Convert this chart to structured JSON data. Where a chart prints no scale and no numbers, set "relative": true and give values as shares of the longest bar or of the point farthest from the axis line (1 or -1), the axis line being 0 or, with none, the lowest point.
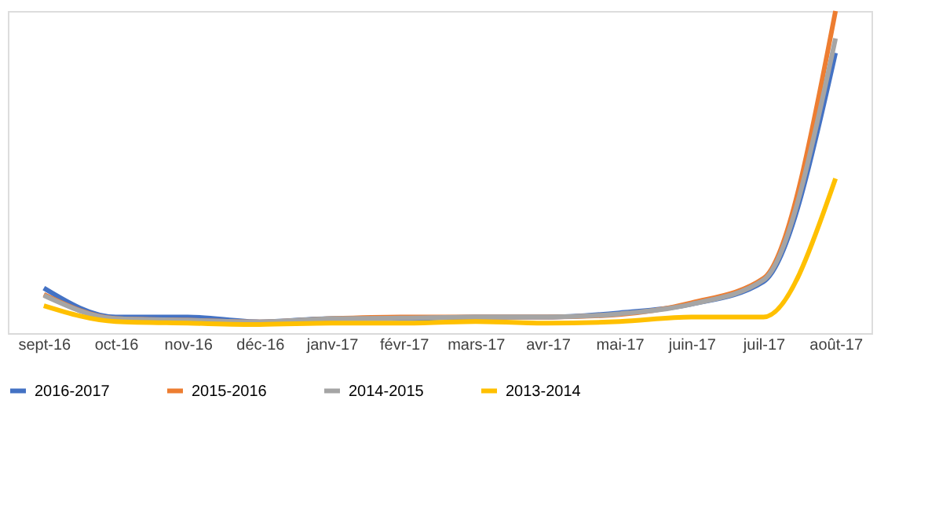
{
  "chart_data": {
    "type": "line",
    "relative": true,
    "legend": "bottom",
    "grid": false,
    "line_style": "solid",
    "categories": [
      "sept-16",
      "oct-16",
      "nov-16",
      "déc-16",
      "janv-17",
      "févr-17",
      "mars-17",
      "avr-17",
      "mai-17",
      "juin-17",
      "juil-17",
      "août-17"
    ],
    "series": [
      {
        "name": "2016-2017",
        "color": "#4472c4",
        "values": [
          0.14,
          0.05,
          0.05,
          0.035,
          0.045,
          0.045,
          0.05,
          0.05,
          0.063,
          0.09,
          0.16,
          0.87
        ]
      },
      {
        "name": "2015-2016",
        "color": "#ed7d31",
        "values": [
          0.12,
          0.045,
          0.04,
          0.035,
          0.045,
          0.05,
          0.05,
          0.05,
          0.058,
          0.094,
          0.17,
          1
        ]
      },
      {
        "name": "2014-2015",
        "color": "#a5a5a5",
        "values": [
          0.117,
          0.045,
          0.04,
          0.035,
          0.045,
          0.047,
          0.05,
          0.05,
          0.06,
          0.09,
          0.165,
          0.915
        ]
      },
      {
        "name": "2013-2014",
        "color": "#ffc000",
        "values": [
          0.085,
          0.036,
          0.031,
          0.027,
          0.031,
          0.031,
          0.036,
          0.031,
          0.036,
          0.05,
          0.05,
          0.48
        ]
      }
    ]
  }
}
